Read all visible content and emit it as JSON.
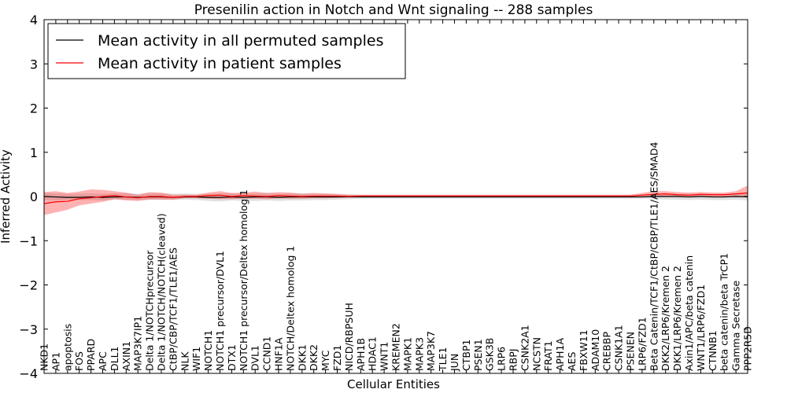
{
  "chart_data": {
    "type": "line",
    "title": "Presenilin action in Notch and Wnt signaling -- 288 samples",
    "xlabel": "Cellular Entities",
    "ylabel": "Inferred Activity",
    "ylim": [
      -4,
      4
    ],
    "yticks": [
      -4,
      -3,
      -2,
      -1,
      0,
      1,
      2,
      3,
      4
    ],
    "ytick_labels": [
      "−4",
      "−3",
      "−2",
      "−1",
      "0",
      "1",
      "2",
      "3",
      "4"
    ],
    "legend_position": "top-left",
    "categories": [
      "NKD1",
      "AP1",
      "apoptosis",
      "FOS",
      "PPARD",
      "APC",
      "DLL1",
      "AXIN1",
      "MAP3K7IP1",
      "Delta 1/NOTCHprecursor",
      "Delta 1/NOTCH/NOTCH(cleaved)",
      "CtBP/CBP/TCF1/TLE1/AES",
      "NLK",
      "WIF1",
      "NOTCH1",
      "NOTCH1 precursor/DVL1",
      "DTX1",
      "NOTCH1 precursor/Deltex homolog 1",
      "DVL1",
      "CCND1",
      "HNF1A",
      "NOTCH/Deltex homolog 1",
      "DKK1",
      "DKK2",
      "MYC",
      "FZD1",
      "NICD/RBPSUH",
      "APH1B",
      "HDAC1",
      "WNT1",
      "KREMEN2",
      "MAPK1",
      "MAPK3",
      "MAP3K7",
      "TLE1",
      "JUN",
      "CTBP1",
      "PSEN1",
      "GSK3B",
      "LRP6",
      "RBPJ",
      "CSNK2A1",
      "NCSTN",
      "FRAT1",
      "APH1A",
      "AES",
      "FBXW11",
      "ADAM10",
      "CREBBP",
      "CSNK1A1",
      "PSENEN",
      "LRP6/FZD1",
      "Beta Catenin/TCF1/CtBP/CBP/TLE1/AES/SMAD4",
      "DKK2/LRP6/Kremen 2",
      "DKK1/LRP6/Kremen 2",
      "Axin1/APC/beta catenin",
      "WNT1/LRP6/FZD1",
      "CTNNB1",
      "beta catenin/beta TrCP1",
      "Gamma Secretase",
      "PPP2R5D"
    ],
    "series": [
      {
        "name": "Mean activity in all permuted samples",
        "color": "#000000",
        "values": [
          0.0,
          -0.01,
          -0.02,
          -0.02,
          -0.01,
          -0.02,
          -0.01,
          -0.01,
          -0.02,
          -0.01,
          -0.01,
          -0.02,
          -0.01,
          -0.01,
          -0.02,
          -0.02,
          -0.01,
          -0.02,
          -0.01,
          -0.01,
          -0.02,
          -0.01,
          -0.01,
          -0.01,
          -0.01,
          -0.01,
          -0.01,
          -0.01,
          -0.01,
          -0.01,
          -0.01,
          -0.01,
          -0.01,
          -0.01,
          -0.01,
          -0.01,
          -0.01,
          -0.01,
          -0.01,
          -0.01,
          -0.01,
          -0.01,
          -0.01,
          -0.01,
          -0.01,
          -0.01,
          -0.01,
          -0.01,
          -0.01,
          -0.01,
          -0.01,
          -0.01,
          0.0,
          0.0,
          0.0,
          -0.01,
          0.0,
          -0.01,
          -0.01,
          0.0,
          -0.01
        ],
        "band_low": [
          -0.08,
          -0.09,
          -0.08,
          -0.08,
          -0.08,
          -0.09,
          -0.07,
          -0.07,
          -0.08,
          -0.07,
          -0.07,
          -0.08,
          -0.07,
          -0.08,
          -0.1,
          -0.11,
          -0.09,
          -0.1,
          -0.1,
          -0.09,
          -0.1,
          -0.09,
          -0.09,
          -0.08,
          -0.08,
          -0.07,
          -0.06,
          -0.05,
          -0.05,
          -0.05,
          -0.05,
          -0.05,
          -0.05,
          -0.05,
          -0.05,
          -0.05,
          -0.05,
          -0.05,
          -0.05,
          -0.05,
          -0.05,
          -0.05,
          -0.05,
          -0.05,
          -0.05,
          -0.05,
          -0.05,
          -0.05,
          -0.05,
          -0.05,
          -0.05,
          -0.05,
          -0.06,
          -0.07,
          -0.07,
          -0.08,
          -0.07,
          -0.08,
          -0.08,
          -0.07,
          -0.09
        ],
        "band_high": [
          0.08,
          0.07,
          0.06,
          0.06,
          0.07,
          0.06,
          0.07,
          0.07,
          0.06,
          0.07,
          0.07,
          0.06,
          0.07,
          0.06,
          0.06,
          0.07,
          0.07,
          0.06,
          0.07,
          0.07,
          0.06,
          0.07,
          0.07,
          0.06,
          0.06,
          0.05,
          0.05,
          0.04,
          0.04,
          0.04,
          0.04,
          0.04,
          0.04,
          0.04,
          0.04,
          0.04,
          0.04,
          0.04,
          0.04,
          0.04,
          0.04,
          0.04,
          0.04,
          0.04,
          0.04,
          0.04,
          0.04,
          0.04,
          0.04,
          0.04,
          0.04,
          0.04,
          0.05,
          0.06,
          0.06,
          0.06,
          0.06,
          0.06,
          0.06,
          0.06,
          0.06
        ]
      },
      {
        "name": "Mean activity in patient samples",
        "color": "#ff0000",
        "values": [
          -0.16,
          -0.12,
          -0.11,
          -0.05,
          -0.03,
          0.0,
          0.02,
          -0.01,
          -0.03,
          0.0,
          0.0,
          -0.02,
          0.0,
          0.0,
          0.02,
          0.03,
          0.0,
          0.02,
          0.01,
          0.0,
          0.02,
          0.01,
          0.0,
          0.01,
          0.01,
          0.01,
          0.0,
          0.01,
          0.01,
          0.01,
          0.01,
          0.01,
          0.01,
          0.01,
          0.01,
          0.01,
          0.01,
          0.01,
          0.01,
          0.01,
          0.01,
          0.01,
          0.01,
          0.01,
          0.01,
          0.01,
          0.01,
          0.01,
          0.01,
          0.01,
          0.01,
          0.03,
          0.05,
          0.06,
          0.04,
          0.03,
          0.05,
          0.04,
          0.04,
          0.06,
          0.08
        ],
        "band_low": [
          -0.42,
          -0.36,
          -0.3,
          -0.2,
          -0.16,
          -0.12,
          -0.06,
          -0.09,
          -0.1,
          -0.07,
          -0.07,
          -0.07,
          -0.04,
          -0.04,
          -0.05,
          -0.06,
          -0.06,
          -0.05,
          -0.05,
          -0.06,
          -0.04,
          -0.05,
          -0.05,
          -0.04,
          -0.04,
          -0.03,
          -0.02,
          -0.02,
          -0.02,
          -0.02,
          -0.02,
          -0.02,
          -0.02,
          -0.02,
          -0.02,
          -0.02,
          -0.02,
          -0.02,
          -0.02,
          -0.02,
          -0.02,
          -0.02,
          -0.02,
          -0.02,
          -0.02,
          -0.02,
          -0.02,
          -0.02,
          -0.02,
          -0.02,
          -0.02,
          -0.01,
          0.0,
          0.01,
          -0.01,
          -0.02,
          0.0,
          -0.01,
          0.0,
          0.0,
          0.0
        ],
        "band_high": [
          0.1,
          0.12,
          0.08,
          0.11,
          0.16,
          0.15,
          0.12,
          0.09,
          0.04,
          0.1,
          0.09,
          0.04,
          0.04,
          0.04,
          0.09,
          0.12,
          0.08,
          0.09,
          0.11,
          0.08,
          0.1,
          0.09,
          0.06,
          0.08,
          0.07,
          0.06,
          0.04,
          0.04,
          0.04,
          0.04,
          0.04,
          0.04,
          0.04,
          0.04,
          0.04,
          0.04,
          0.04,
          0.04,
          0.04,
          0.04,
          0.04,
          0.04,
          0.04,
          0.04,
          0.04,
          0.04,
          0.04,
          0.04,
          0.04,
          0.04,
          0.04,
          0.08,
          0.12,
          0.12,
          0.1,
          0.09,
          0.1,
          0.09,
          0.09,
          0.12,
          0.25
        ]
      }
    ]
  }
}
